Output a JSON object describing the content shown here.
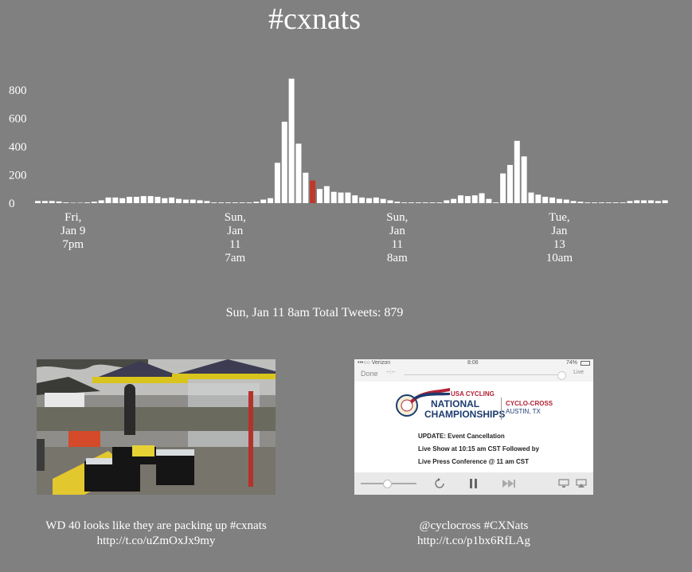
{
  "chart_data": {
    "type": "bar",
    "title": "#cxnats",
    "ylim": [
      0,
      900
    ],
    "yticks": [
      0,
      200,
      400,
      600,
      800
    ],
    "highlight_index": 39,
    "highlight_color": "#c0392b",
    "bar_color": "#ffffff",
    "values": [
      15,
      15,
      15,
      12,
      5,
      3,
      3,
      5,
      10,
      20,
      40,
      40,
      35,
      45,
      45,
      50,
      50,
      45,
      35,
      40,
      30,
      25,
      25,
      20,
      15,
      5,
      5,
      5,
      5,
      5,
      5,
      10,
      25,
      35,
      285,
      575,
      879,
      420,
      215,
      160,
      100,
      120,
      80,
      75,
      75,
      55,
      40,
      35,
      40,
      30,
      20,
      10,
      5,
      5,
      5,
      5,
      5,
      5,
      20,
      30,
      55,
      50,
      55,
      70,
      30,
      5,
      210,
      270,
      440,
      330,
      75,
      60,
      45,
      40,
      30,
      25,
      15,
      10,
      5,
      5,
      5,
      5,
      5,
      5,
      15,
      20,
      20,
      20,
      15,
      20
    ],
    "x_tick_labels": [
      {
        "index": 5,
        "lines": [
          "Fri,",
          "Jan 9",
          "7pm"
        ]
      },
      {
        "index": 28,
        "lines": [
          "Sun,",
          "Jan",
          "11",
          "7am"
        ]
      },
      {
        "index": 51,
        "lines": [
          "Sun,",
          "Jan",
          "11",
          "8am"
        ]
      },
      {
        "index": 74,
        "lines": [
          "Tue,",
          "Jan",
          "13",
          "10am"
        ]
      }
    ]
  },
  "summary": "Sun, Jan 11 8am Total Tweets: 879",
  "tweets": [
    {
      "caption_line1": "WD 40 looks like they are packing up #cxnats",
      "caption_line2": "http://t.co/uZmOxJx9my"
    },
    {
      "caption_line1": "@cyclocross #CXNats",
      "caption_line2": "http://t.co/p1bx6RfLAg"
    }
  ],
  "screenshot": {
    "carrier": "•••○○ Verizon",
    "time": "8:06",
    "battery": "74%",
    "done": "Done",
    "elapsed": "--:--",
    "live": "Live",
    "org": "USA CYCLING",
    "event_line1": "NATIONAL",
    "event_line2": "CHAMPIONSHIPS",
    "discipline": "CYCLO-CROSS",
    "location": "AUSTIN, TX",
    "update": "UPDATE: Event Cancellation",
    "line2": "Live Show at 10:15 am CST Followed by",
    "line3": "Live Press Conference @ 11 am CST"
  }
}
